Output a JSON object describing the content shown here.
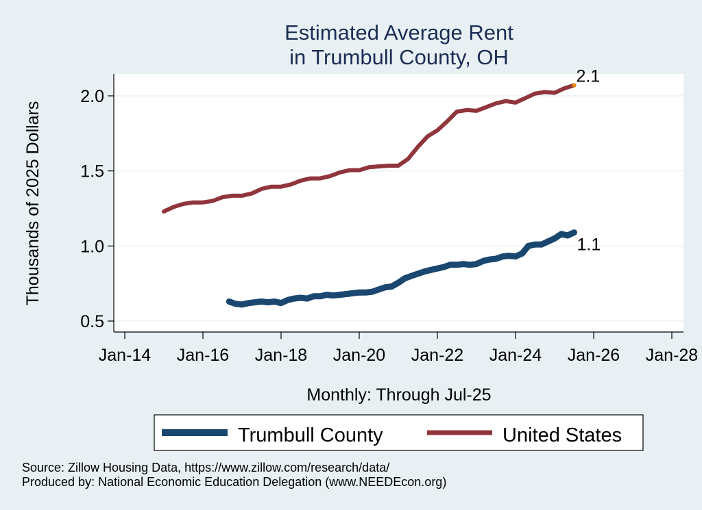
{
  "chart_data": {
    "type": "line",
    "title": [
      "Estimated Average Rent",
      "in Trumbull County, OH"
    ],
    "xlabel": "Monthly: Through Jul-25",
    "ylabel": "Thousands of 2025 Dollars",
    "x_ticks": [
      {
        "label": "Jan-14",
        "year": 2014
      },
      {
        "label": "Jan-16",
        "year": 2016
      },
      {
        "label": "Jan-18",
        "year": 2018
      },
      {
        "label": "Jan-20",
        "year": 2020
      },
      {
        "label": "Jan-22",
        "year": 2022
      },
      {
        "label": "Jan-24",
        "year": 2024
      },
      {
        "label": "Jan-26",
        "year": 2026
      },
      {
        "label": "Jan-28",
        "year": 2028
      }
    ],
    "y_ticks": [
      {
        "label": "0.5",
        "value": 0.5
      },
      {
        "label": "1.0",
        "value": 1.0
      },
      {
        "label": "1.5",
        "value": 1.5
      },
      {
        "label": "2.0",
        "value": 2.0
      }
    ],
    "xlim": [
      2013.98,
      2028.28
    ],
    "ylim": [
      0.42,
      2.15
    ],
    "grid": true,
    "legend_position": "bottom",
    "series": [
      {
        "name": "Trumbull County",
        "color": "#1a476f",
        "end_label": "1.1",
        "points": [
          [
            2016.67,
            0.63
          ],
          [
            2016.83,
            0.615
          ],
          [
            2017.0,
            0.61
          ],
          [
            2017.17,
            0.62
          ],
          [
            2017.33,
            0.625
          ],
          [
            2017.5,
            0.63
          ],
          [
            2017.67,
            0.625
          ],
          [
            2017.83,
            0.63
          ],
          [
            2018.0,
            0.62
          ],
          [
            2018.17,
            0.64
          ],
          [
            2018.33,
            0.65
          ],
          [
            2018.5,
            0.655
          ],
          [
            2018.67,
            0.65
          ],
          [
            2018.83,
            0.665
          ],
          [
            2019.0,
            0.665
          ],
          [
            2019.17,
            0.675
          ],
          [
            2019.33,
            0.67
          ],
          [
            2019.5,
            0.675
          ],
          [
            2019.67,
            0.68
          ],
          [
            2019.83,
            0.685
          ],
          [
            2020.0,
            0.69
          ],
          [
            2020.17,
            0.69
          ],
          [
            2020.33,
            0.695
          ],
          [
            2020.5,
            0.71
          ],
          [
            2020.67,
            0.725
          ],
          [
            2020.83,
            0.73
          ],
          [
            2021.0,
            0.755
          ],
          [
            2021.17,
            0.785
          ],
          [
            2021.33,
            0.8
          ],
          [
            2021.5,
            0.815
          ],
          [
            2021.67,
            0.83
          ],
          [
            2021.83,
            0.84
          ],
          [
            2022.0,
            0.85
          ],
          [
            2022.17,
            0.86
          ],
          [
            2022.33,
            0.875
          ],
          [
            2022.5,
            0.875
          ],
          [
            2022.67,
            0.88
          ],
          [
            2022.83,
            0.875
          ],
          [
            2023.0,
            0.88
          ],
          [
            2023.17,
            0.9
          ],
          [
            2023.33,
            0.91
          ],
          [
            2023.5,
            0.915
          ],
          [
            2023.67,
            0.93
          ],
          [
            2023.83,
            0.935
          ],
          [
            2024.0,
            0.93
          ],
          [
            2024.17,
            0.95
          ],
          [
            2024.33,
            1.0
          ],
          [
            2024.5,
            1.01
          ],
          [
            2024.67,
            1.01
          ],
          [
            2024.83,
            1.03
          ],
          [
            2025.0,
            1.05
          ],
          [
            2025.17,
            1.08
          ],
          [
            2025.33,
            1.07
          ],
          [
            2025.5,
            1.09
          ]
        ]
      },
      {
        "name": "United States",
        "color": "#90353b",
        "end_label": "2.1",
        "end_marker_color": "#e8830c",
        "points": [
          [
            2015.0,
            1.23
          ],
          [
            2015.25,
            1.26
          ],
          [
            2015.5,
            1.28
          ],
          [
            2015.75,
            1.29
          ],
          [
            2016.0,
            1.29
          ],
          [
            2016.25,
            1.3
          ],
          [
            2016.5,
            1.325
          ],
          [
            2016.75,
            1.335
          ],
          [
            2017.0,
            1.335
          ],
          [
            2017.25,
            1.35
          ],
          [
            2017.5,
            1.38
          ],
          [
            2017.75,
            1.395
          ],
          [
            2018.0,
            1.395
          ],
          [
            2018.25,
            1.41
          ],
          [
            2018.5,
            1.435
          ],
          [
            2018.75,
            1.45
          ],
          [
            2019.0,
            1.45
          ],
          [
            2019.25,
            1.465
          ],
          [
            2019.5,
            1.49
          ],
          [
            2019.75,
            1.505
          ],
          [
            2020.0,
            1.505
          ],
          [
            2020.25,
            1.525
          ],
          [
            2020.5,
            1.53
          ],
          [
            2020.75,
            1.535
          ],
          [
            2021.0,
            1.535
          ],
          [
            2021.25,
            1.58
          ],
          [
            2021.5,
            1.66
          ],
          [
            2021.75,
            1.73
          ],
          [
            2022.0,
            1.77
          ],
          [
            2022.25,
            1.83
          ],
          [
            2022.5,
            1.895
          ],
          [
            2022.75,
            1.905
          ],
          [
            2023.0,
            1.9
          ],
          [
            2023.25,
            1.925
          ],
          [
            2023.5,
            1.95
          ],
          [
            2023.75,
            1.965
          ],
          [
            2024.0,
            1.955
          ],
          [
            2024.25,
            1.985
          ],
          [
            2024.5,
            2.015
          ],
          [
            2024.75,
            2.025
          ],
          [
            2025.0,
            2.02
          ],
          [
            2025.25,
            2.05
          ],
          [
            2025.5,
            2.07
          ]
        ]
      }
    ]
  },
  "notes": {
    "source": "Source: Zillow Housing Data, https://www.zillow.com/research/data/",
    "produced_by": "Produced by: National Economic Education Delegation (www.NEEDEcon.org)"
  }
}
